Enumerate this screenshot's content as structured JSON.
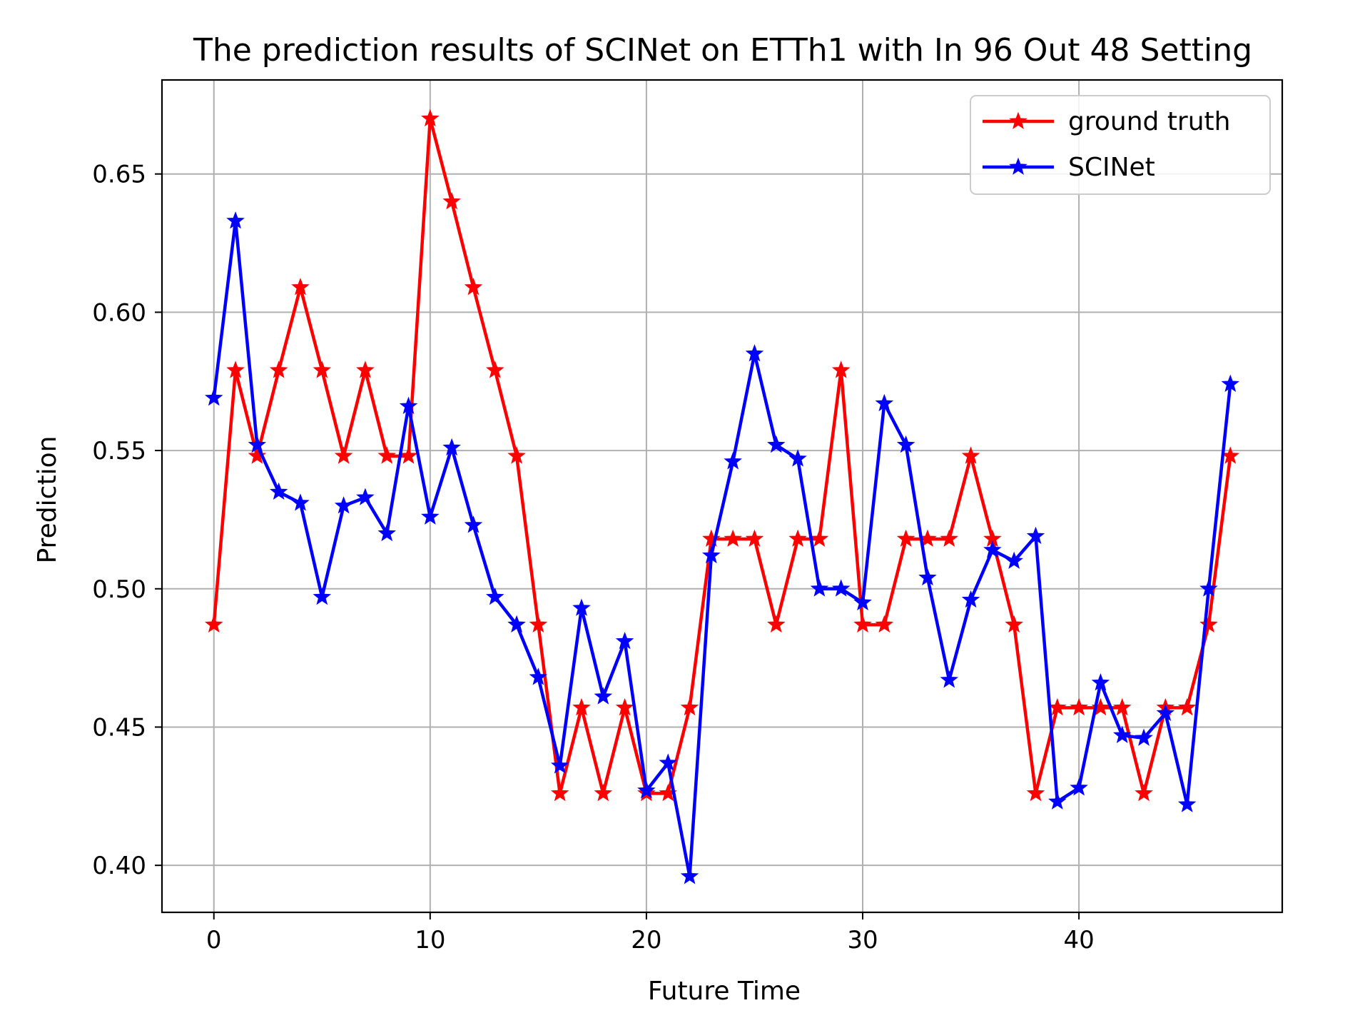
{
  "chart_data": {
    "type": "line",
    "title": "The prediction results of SCINet on ETTh1 with In 96 Out 48 Setting",
    "xlabel": "Future Time",
    "ylabel": "Prediction",
    "xlim": [
      -2.4,
      49.4
    ],
    "ylim": [
      0.383,
      0.684
    ],
    "xticks": [
      0,
      10,
      20,
      30,
      40
    ],
    "xtick_labels": [
      "0",
      "10",
      "20",
      "30",
      "40"
    ],
    "yticks": [
      0.4,
      0.45,
      0.5,
      0.55,
      0.6,
      0.65
    ],
    "ytick_labels": [
      "0.40",
      "0.45",
      "0.50",
      "0.55",
      "0.60",
      "0.65"
    ],
    "grid": true,
    "legend_position": "top-right",
    "x": [
      0,
      1,
      2,
      3,
      4,
      5,
      6,
      7,
      8,
      9,
      10,
      11,
      12,
      13,
      14,
      15,
      16,
      17,
      18,
      19,
      20,
      21,
      22,
      23,
      24,
      25,
      26,
      27,
      28,
      29,
      30,
      31,
      32,
      33,
      34,
      35,
      36,
      37,
      38,
      39,
      40,
      41,
      42,
      43,
      44,
      45,
      46,
      47
    ],
    "series": [
      {
        "name": "ground truth",
        "color": "#ff0000",
        "marker": "star",
        "values": [
          0.487,
          0.579,
          0.548,
          0.579,
          0.609,
          0.579,
          0.548,
          0.579,
          0.548,
          0.548,
          0.67,
          0.64,
          0.609,
          0.579,
          0.548,
          0.487,
          0.426,
          0.457,
          0.426,
          0.457,
          0.426,
          0.426,
          0.457,
          0.518,
          0.518,
          0.518,
          0.487,
          0.518,
          0.518,
          0.579,
          0.487,
          0.487,
          0.518,
          0.518,
          0.518,
          0.548,
          0.518,
          0.487,
          0.426,
          0.457,
          0.457,
          0.457,
          0.457,
          0.426,
          0.457,
          0.457,
          0.487,
          0.548
        ]
      },
      {
        "name": "SCINet",
        "color": "#0000ff",
        "marker": "star",
        "values": [
          0.569,
          0.633,
          0.552,
          0.535,
          0.531,
          0.497,
          0.53,
          0.533,
          0.52,
          0.566,
          0.526,
          0.551,
          0.523,
          0.497,
          0.487,
          0.468,
          0.436,
          0.493,
          0.461,
          0.481,
          0.427,
          0.437,
          0.396,
          0.512,
          0.546,
          0.585,
          0.552,
          0.547,
          0.5,
          0.5,
          0.495,
          0.567,
          0.552,
          0.504,
          0.467,
          0.496,
          0.514,
          0.51,
          0.519,
          0.423,
          0.428,
          0.466,
          0.447,
          0.446,
          0.455,
          0.422,
          0.5,
          0.574
        ]
      }
    ]
  }
}
